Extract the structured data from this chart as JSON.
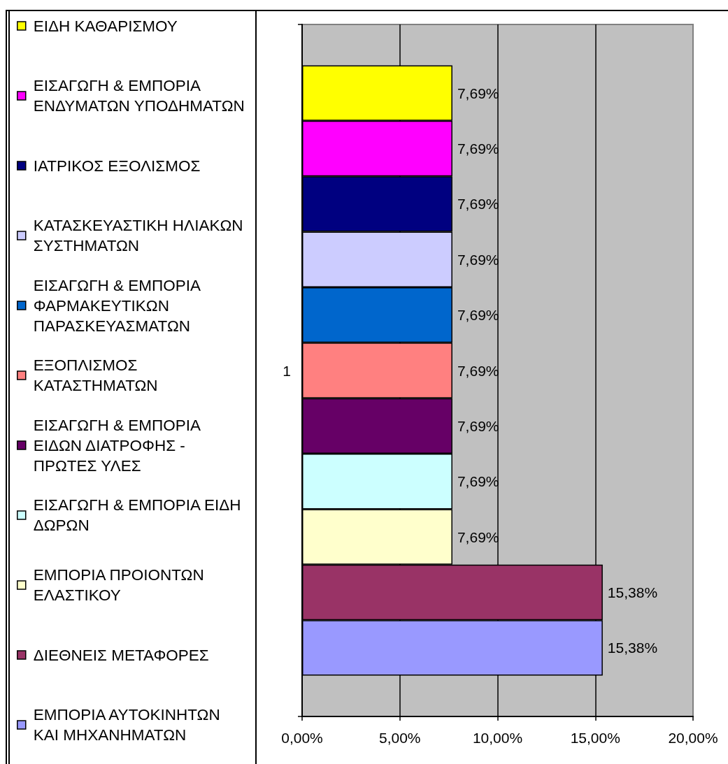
{
  "chart_data": {
    "type": "bar",
    "orientation": "horizontal",
    "categories": [
      "1"
    ],
    "series": [
      {
        "name": "ΕΙΔΗ ΚΑΘΑΡΙΣΜΟΥ",
        "color": "#ffff00",
        "values": [
          7.69
        ],
        "value_labels": [
          "7,69%"
        ]
      },
      {
        "name": "ΕΙΣΑΓΩΓΗ & ΕΜΠΟΡΙΑ ΕΝΔΥΜΑΤΩΝ ΥΠΟΔΗΜΑΤΩΝ",
        "color": "#ff00ff",
        "values": [
          7.69
        ],
        "value_labels": [
          "7,69%"
        ]
      },
      {
        "name": "ΙΑΤΡΙΚΟΣ ΕΞΟΛΙΣΜΟΣ",
        "color": "#000080",
        "values": [
          7.69
        ],
        "value_labels": [
          "7,69%"
        ]
      },
      {
        "name": "ΚΑΤΑΣΚΕΥΑΣΤΙΚΗ ΗΛΙΑΚΩΝ ΣΥΣΤΗΜΑΤΩΝ",
        "color": "#ccccff",
        "values": [
          7.69
        ],
        "value_labels": [
          "7,69%"
        ]
      },
      {
        "name": "ΕΙΣΑΓΩΓΗ & ΕΜΠΟΡΙΑ ΦΑΡΜΑΚΕΥΤΙΚΩΝ ΠΑΡΑΣΚΕΥΑΣΜΑΤΩΝ",
        "color": "#0066cc",
        "values": [
          7.69
        ],
        "value_labels": [
          "7,69%"
        ]
      },
      {
        "name": "ΕΞΟΠΛΙΣΜΟΣ ΚΑΤΑΣΤΗΜΑΤΩΝ",
        "color": "#ff8080",
        "values": [
          7.69
        ],
        "value_labels": [
          "7,69%"
        ]
      },
      {
        "name": "ΕΙΣΑΓΩΓΗ & ΕΜΠΟΡΙΑ ΕΙΔΩΝ ΔΙΑΤΡΟΦΗΣ - ΠΡΩΤΕΣ ΥΛΕΣ",
        "color": "#660066",
        "values": [
          7.69
        ],
        "value_labels": [
          "7,69%"
        ]
      },
      {
        "name": "ΕΙΣΑΓΩΓΗ & ΕΜΠΟΡΙΑ ΕΙΔΗ ΔΩΡΩΝ",
        "color": "#ccffff",
        "values": [
          7.69
        ],
        "value_labels": [
          "7,69%"
        ]
      },
      {
        "name": "ΕΜΠΟΡΙΑ ΠΡΟΙΟΝΤΩΝ ΕΛΑΣΤΙΚΟΥ",
        "color": "#ffffcc",
        "values": [
          7.69
        ],
        "value_labels": [
          "7,69%"
        ]
      },
      {
        "name": "ΔΙΕΘΝΕΙΣ ΜΕΤΑΦΟΡΕΣ",
        "color": "#993366",
        "values": [
          15.38
        ],
        "value_labels": [
          "15,38%"
        ]
      },
      {
        "name": "ΕΜΠΟΡΙΑ ΑΥΤΟΚΙΝΗΤΩΝ ΚΑΙ ΜΗΧΑΝΗΜΑΤΩΝ",
        "color": "#9999ff",
        "values": [
          15.38
        ],
        "value_labels": [
          "15,38%"
        ]
      }
    ],
    "xlim": [
      0,
      20
    ],
    "xticks": [
      {
        "value": 0,
        "label": "0,00%"
      },
      {
        "value": 5,
        "label": "5,00%"
      },
      {
        "value": 10,
        "label": "10,00%"
      },
      {
        "value": 15,
        "label": "15,00%"
      },
      {
        "value": 20,
        "label": "20,00%"
      }
    ],
    "grid": "x",
    "legend": "left"
  }
}
